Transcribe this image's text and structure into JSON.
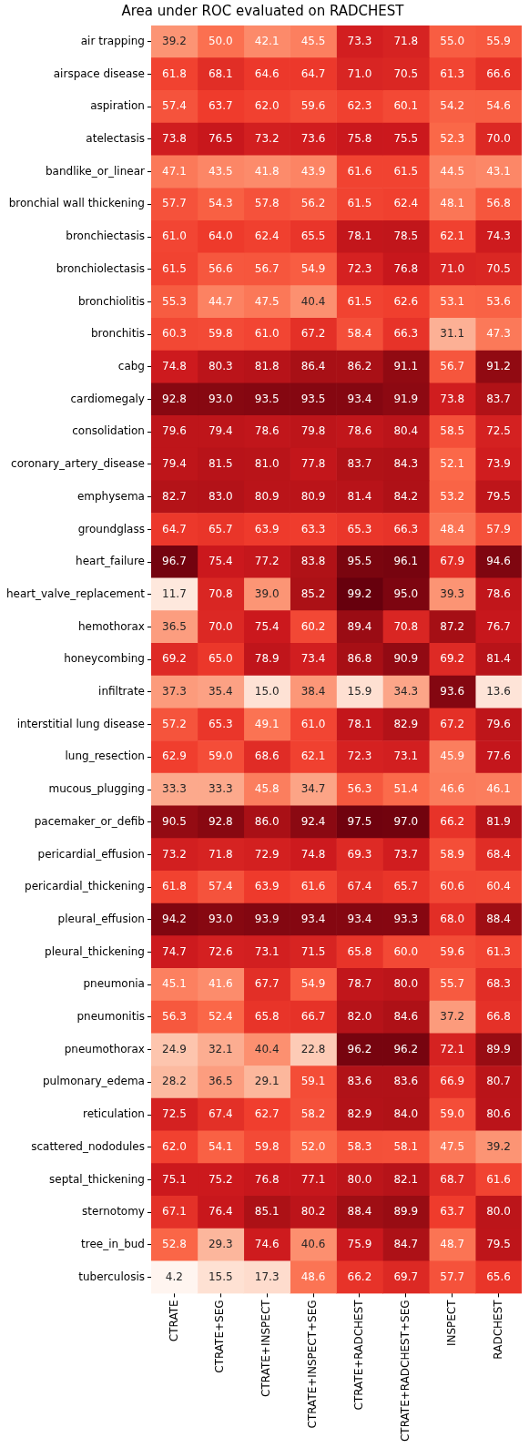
{
  "chart_data": {
    "type": "heatmap",
    "title": "Area under ROC evaluated on RADCHEST",
    "categories": [
      "CTRATE",
      "CTRATE+SEG",
      "CTRATE+INSPECT",
      "CTRATE+INSPECT+SEG",
      "CTRATE+RADCHEST",
      "CTRATE+RADCHEST+SEG",
      "INSPECT",
      "RADCHEST"
    ],
    "y_categories": [
      "air trapping",
      "airspace disease",
      "aspiration",
      "atelectasis",
      "bandlike_or_linear",
      "bronchial wall thickening",
      "bronchiectasis",
      "bronchiolectasis",
      "bronchiolitis",
      "bronchitis",
      "cabg",
      "cardiomegaly",
      "consolidation",
      "coronary_artery_disease",
      "emphysema",
      "groundglass",
      "heart_failure",
      "heart_valve_replacement",
      "hemothorax",
      "honeycombing",
      "infiltrate",
      "interstitial lung disease",
      "lung_resection",
      "mucous_plugging",
      "pacemaker_or_defib",
      "pericardial_effusion",
      "pericardial_thickening",
      "pleural_effusion",
      "pleural_thickening",
      "pneumonia",
      "pneumonitis",
      "pneumothorax",
      "pulmonary_edema",
      "reticulation",
      "scattered_nododules",
      "septal_thickening",
      "sternotomy",
      "tree_in_bud",
      "tuberculosis"
    ],
    "cells": [
      [
        39.2,
        50.0,
        42.1,
        45.5,
        73.3,
        71.8,
        55.0,
        55.9
      ],
      [
        61.8,
        68.1,
        64.6,
        64.7,
        71.0,
        70.5,
        61.3,
        66.6
      ],
      [
        57.4,
        63.7,
        62.0,
        59.6,
        62.3,
        60.1,
        54.2,
        54.6
      ],
      [
        73.8,
        76.5,
        73.2,
        73.6,
        75.8,
        75.5,
        52.3,
        70.0
      ],
      [
        47.1,
        43.5,
        41.8,
        43.9,
        61.6,
        61.5,
        44.5,
        43.1
      ],
      [
        57.7,
        54.3,
        57.8,
        56.2,
        61.5,
        62.4,
        48.1,
        56.8
      ],
      [
        61.0,
        64.0,
        62.4,
        65.5,
        78.1,
        78.5,
        62.1,
        74.3
      ],
      [
        61.5,
        56.6,
        56.7,
        54.9,
        72.3,
        76.8,
        71.0,
        70.5
      ],
      [
        55.3,
        44.7,
        47.5,
        40.4,
        61.5,
        62.6,
        53.1,
        53.6
      ],
      [
        60.3,
        59.8,
        61.0,
        67.2,
        58.4,
        66.3,
        31.1,
        47.3
      ],
      [
        74.8,
        80.3,
        81.8,
        86.4,
        86.2,
        91.1,
        56.7,
        91.2
      ],
      [
        92.8,
        93.0,
        93.5,
        93.5,
        93.4,
        91.9,
        73.8,
        83.7
      ],
      [
        79.6,
        79.4,
        78.6,
        79.8,
        78.6,
        80.4,
        58.5,
        72.5
      ],
      [
        79.4,
        81.5,
        81.0,
        77.8,
        83.7,
        84.3,
        52.1,
        73.9
      ],
      [
        82.7,
        83.0,
        80.9,
        80.9,
        81.4,
        84.2,
        53.2,
        79.5
      ],
      [
        64.7,
        65.7,
        63.9,
        63.3,
        65.3,
        66.3,
        48.4,
        57.9
      ],
      [
        96.7,
        75.4,
        77.2,
        83.8,
        95.5,
        96.1,
        67.9,
        94.6
      ],
      [
        11.7,
        70.8,
        39.0,
        85.2,
        99.2,
        95.0,
        39.3,
        78.6
      ],
      [
        36.5,
        70.0,
        75.4,
        60.2,
        89.4,
        70.8,
        87.2,
        76.7
      ],
      [
        69.2,
        65.0,
        78.9,
        73.4,
        86.8,
        90.9,
        69.2,
        81.4
      ],
      [
        37.3,
        35.4,
        15.0,
        38.4,
        15.9,
        34.3,
        93.6,
        13.6
      ],
      [
        57.2,
        65.3,
        49.1,
        61.0,
        78.1,
        82.9,
        67.2,
        79.6
      ],
      [
        62.9,
        59.0,
        68.6,
        62.1,
        72.3,
        73.1,
        45.9,
        77.6
      ],
      [
        33.3,
        33.3,
        45.8,
        34.7,
        56.3,
        51.4,
        46.6,
        46.1
      ],
      [
        90.5,
        92.8,
        86.0,
        92.4,
        97.5,
        97.0,
        66.2,
        81.9
      ],
      [
        73.2,
        71.8,
        72.9,
        74.8,
        69.3,
        73.7,
        58.9,
        68.4
      ],
      [
        61.8,
        57.4,
        63.9,
        61.6,
        67.4,
        65.7,
        60.6,
        60.4
      ],
      [
        94.2,
        93.0,
        93.9,
        93.4,
        93.4,
        93.3,
        68.0,
        88.4
      ],
      [
        74.7,
        72.6,
        73.1,
        71.5,
        65.8,
        60.0,
        59.6,
        61.3
      ],
      [
        45.1,
        41.6,
        67.7,
        54.9,
        78.7,
        80.0,
        55.7,
        68.3
      ],
      [
        56.3,
        52.4,
        65.8,
        66.7,
        82.0,
        84.6,
        37.2,
        66.8
      ],
      [
        24.9,
        32.1,
        40.4,
        22.8,
        96.2,
        96.2,
        72.1,
        89.9
      ],
      [
        28.2,
        36.5,
        29.1,
        59.1,
        83.6,
        83.6,
        66.9,
        80.7
      ],
      [
        72.5,
        67.4,
        62.7,
        58.2,
        82.9,
        84.0,
        59.0,
        80.6
      ],
      [
        62.0,
        54.1,
        59.8,
        52.0,
        58.3,
        58.1,
        47.5,
        39.2
      ],
      [
        75.1,
        75.2,
        76.8,
        77.1,
        80.0,
        82.1,
        68.7,
        61.6
      ],
      [
        67.1,
        76.4,
        85.1,
        80.2,
        88.4,
        89.9,
        63.7,
        80.0
      ],
      [
        52.8,
        29.3,
        74.6,
        40.6,
        75.9,
        84.7,
        48.7,
        79.5
      ],
      [
        4.2,
        15.5,
        17.3,
        48.6,
        66.2,
        69.7,
        57.7,
        65.6
      ]
    ],
    "cell_labels": [
      [
        "39.2",
        "50.0",
        "42.1",
        "45.5",
        "73.3",
        "71.8",
        "55.0",
        "55.9"
      ],
      [
        "61.8",
        "68.1",
        "64.6",
        "64.7",
        "71.0",
        "70.5",
        "61.3",
        "66.6"
      ],
      [
        "57.4",
        "63.7",
        "62.0",
        "59.6",
        "62.3",
        "60.1",
        "54.2",
        "54.6"
      ],
      [
        "73.8",
        "76.5",
        "73.2",
        "73.6",
        "75.8",
        "75.5",
        "52.3",
        "70.0"
      ],
      [
        "47.1",
        "43.5",
        "41.8",
        "43.9",
        "61.6",
        "61.5",
        "44.5",
        "43.1"
      ],
      [
        "57.7",
        "54.3",
        "57.8",
        "56.2",
        "61.5",
        "62.4",
        "48.1",
        "56.8"
      ],
      [
        "61.0",
        "64.0",
        "62.4",
        "65.5",
        "78.1",
        "78.5",
        "62.1",
        "74.3"
      ],
      [
        "61.5",
        "56.6",
        "56.7",
        "54.9",
        "72.3",
        "76.8",
        "71.0",
        "70.5"
      ],
      [
        "55.3",
        "44.7",
        "47.5",
        "40.4",
        "61.5",
        "62.6",
        "53.1",
        "53.6"
      ],
      [
        "60.3",
        "59.8",
        "61.0",
        "67.2",
        "58.4",
        "66.3",
        "31.1",
        "47.3"
      ],
      [
        "74.8",
        "80.3",
        "81.8",
        "86.4",
        "86.2",
        "91.1",
        "56.7",
        "91.2"
      ],
      [
        "92.8",
        "93.0",
        "93.5",
        "93.5",
        "93.4",
        "91.9",
        "73.8",
        "83.7"
      ],
      [
        "79.6",
        "79.4",
        "78.6",
        "79.8",
        "78.6",
        "80.4",
        "58.5",
        "72.5"
      ],
      [
        "79.4",
        "81.5",
        "81.0",
        "77.8",
        "83.7",
        "84.3",
        "52.1",
        "73.9"
      ],
      [
        "82.7",
        "83.0",
        "80.9",
        "80.9",
        "81.4",
        "84.2",
        "53.2",
        "79.5"
      ],
      [
        "64.7",
        "65.7",
        "63.9",
        "63.3",
        "65.3",
        "66.3",
        "48.4",
        "57.9"
      ],
      [
        "96.7",
        "75.4",
        "77.2",
        "83.8",
        "95.5",
        "96.1",
        "67.9",
        "94.6"
      ],
      [
        "11.7",
        "70.8",
        "39.0",
        "85.2",
        "99.2",
        "95.0",
        "39.3",
        "78.6"
      ],
      [
        "36.5",
        "70.0",
        "75.4",
        "60.2",
        "89.4",
        "70.8",
        "87.2",
        "76.7"
      ],
      [
        "69.2",
        "65.0",
        "78.9",
        "73.4",
        "86.8",
        "90.9",
        "69.2",
        "81.4"
      ],
      [
        "37.3",
        "35.4",
        "15.0",
        "38.4",
        "15.9",
        "34.3",
        "93.6",
        "13.6"
      ],
      [
        "57.2",
        "65.3",
        "49.1",
        "61.0",
        "78.1",
        "82.9",
        "67.2",
        "79.6"
      ],
      [
        "62.9",
        "59.0",
        "68.6",
        "62.1",
        "72.3",
        "73.1",
        "45.9",
        "77.6"
      ],
      [
        "33.3",
        "33.3",
        "45.8",
        "34.7",
        "56.3",
        "51.4",
        "46.6",
        "46.1"
      ],
      [
        "90.5",
        "92.8",
        "86.0",
        "92.4",
        "97.5",
        "97.0",
        "66.2",
        "81.9"
      ],
      [
        "73.2",
        "71.8",
        "72.9",
        "74.8",
        "69.3",
        "73.7",
        "58.9",
        "68.4"
      ],
      [
        "61.8",
        "57.4",
        "63.9",
        "61.6",
        "67.4",
        "65.7",
        "60.6",
        "60.4"
      ],
      [
        "94.2",
        "93.0",
        "93.9",
        "93.4",
        "93.4",
        "93.3",
        "68.0",
        "88.4"
      ],
      [
        "74.7",
        "72.6",
        "73.1",
        "71.5",
        "65.8",
        "60.0",
        "59.6",
        "61.3"
      ],
      [
        "45.1",
        "41.6",
        "67.7",
        "54.9",
        "78.7",
        "80.0",
        "55.7",
        "68.3"
      ],
      [
        "56.3",
        "52.4",
        "65.8",
        "66.7",
        "82.0",
        "84.6",
        "37.2",
        "66.8"
      ],
      [
        "24.9",
        "32.1",
        "40.4",
        "22.8",
        "96.2",
        "96.2",
        "72.1",
        "89.9"
      ],
      [
        "28.2",
        "36.5",
        "29.1",
        "59.1",
        "83.6",
        "83.6",
        "66.9",
        "80.7"
      ],
      [
        "72.5",
        "67.4",
        "62.7",
        "58.2",
        "82.9",
        "84.0",
        "59.0",
        "80.6"
      ],
      [
        "62.0",
        "54.1",
        "59.8",
        "52.0",
        "58.3",
        "58.1",
        "47.5",
        "39.2"
      ],
      [
        "75.1",
        "75.2",
        "76.8",
        "77.1",
        "80.0",
        "82.1",
        "68.7",
        "61.6"
      ],
      [
        "67.1",
        "76.4",
        "85.1",
        "80.2",
        "88.4",
        "89.9",
        "63.7",
        "80.0"
      ],
      [
        "52.8",
        "29.3",
        "74.6",
        "40.6",
        "75.9",
        "84.7",
        "48.7",
        "79.5"
      ],
      [
        "4.2",
        "15.5",
        "17.3",
        "48.6",
        "66.2",
        "69.7",
        "57.7",
        "65.6"
      ]
    ],
    "data_labels": true
  }
}
